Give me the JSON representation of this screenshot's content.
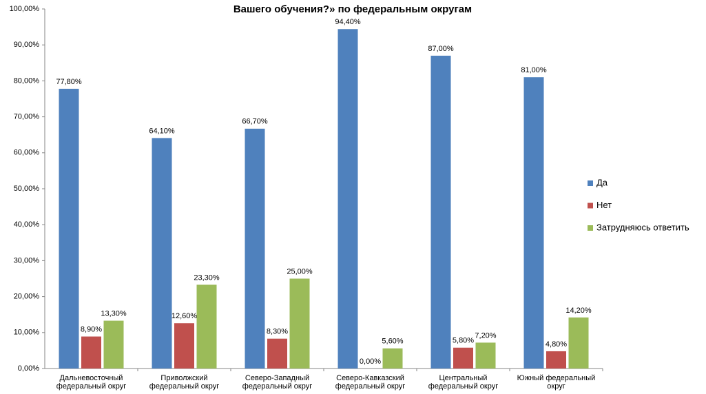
{
  "chart_data": {
    "type": "bar",
    "title": "Вашего обучения?»  по федеральным округам",
    "categories": [
      "Дальневосточный федеральный округ",
      "Приволжский федеральный округ",
      "Северо-Западный федеральный округ",
      "Северо-Кавказский федеральный округ",
      "Центральный федеральный округ",
      "Южный федеральный округ"
    ],
    "series": [
      {
        "name": "Да",
        "color": "#4f81bd",
        "values": [
          77.8,
          64.1,
          66.7,
          94.4,
          87.0,
          81.0
        ],
        "value_labels": [
          "77,80%",
          "64,10%",
          "66,70%",
          "94,40%",
          "87,00%",
          "81,00%"
        ]
      },
      {
        "name": "Нет",
        "color": "#c0504d",
        "values": [
          8.9,
          12.6,
          8.3,
          0,
          5.8,
          4.8
        ],
        "value_labels": [
          "8,90%",
          "12,60%",
          "8,30%",
          "0,00%",
          "5,80%",
          "4,80%"
        ]
      },
      {
        "name": "Затрудняюсь ответить",
        "color": "#9bbb59",
        "values": [
          13.3,
          23.3,
          25.0,
          5.6,
          7.2,
          14.2
        ],
        "value_labels": [
          "13,30%",
          "23,30%",
          "25,00%",
          "5,60%",
          "7,20%",
          "14,20%"
        ]
      }
    ],
    "ylim": [
      0,
      100
    ],
    "yticks": [
      {
        "value": 0,
        "label": "0,00%"
      },
      {
        "value": 10,
        "label": "10,00%"
      },
      {
        "value": 20,
        "label": "20,00%"
      },
      {
        "value": 30,
        "label": "30,00%"
      },
      {
        "value": 40,
        "label": "40,00%"
      },
      {
        "value": 50,
        "label": "50,00%"
      },
      {
        "value": 60,
        "label": "60,00%"
      },
      {
        "value": 70,
        "label": "70,00%"
      },
      {
        "value": 80,
        "label": "80,00%"
      },
      {
        "value": 90,
        "label": "90,00%"
      },
      {
        "value": 100,
        "label": "100,00%"
      }
    ],
    "legend": "right"
  }
}
